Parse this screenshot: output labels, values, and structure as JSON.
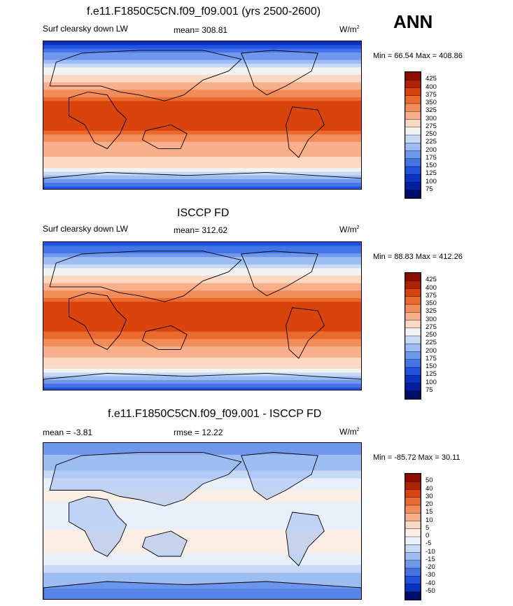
{
  "season": "ANN",
  "panels": [
    {
      "title": "f.e11.F1850C5CN.f09_f09.001 (yrs 2500-2600)",
      "left_label": "Surf clearsky down LW",
      "center_label": "mean= 308.81",
      "units": "W/m",
      "units_sup": "2",
      "minmax": "Min =  66.54 Max = 408.86",
      "colorbar_labels": [
        "425",
        "400",
        "375",
        "350",
        "325",
        "300",
        "275",
        "250",
        "225",
        "200",
        "175",
        "150",
        "125",
        "100",
        "75"
      ],
      "kind": "model"
    },
    {
      "title": "ISCCP FD",
      "left_label": "Surf clearsky down LW",
      "center_label": "mean= 312.62",
      "units": "W/m",
      "units_sup": "2",
      "minmax": "Min =  88.83 Max = 412.26",
      "colorbar_labels": [
        "425",
        "400",
        "375",
        "350",
        "325",
        "300",
        "275",
        "250",
        "225",
        "200",
        "175",
        "150",
        "125",
        "100",
        "75"
      ],
      "kind": "obs"
    },
    {
      "title": "f.e11.F1850C5CN.f09_f09.001 - ISCCP FD",
      "left_label": "mean =  -3.81",
      "center_label": "rmse =  12.22",
      "units": "W/m",
      "units_sup": "2",
      "minmax": "Min = -85.72 Max =  30.11",
      "colorbar_labels": [
        "50",
        "40",
        "30",
        "20",
        "15",
        "10",
        "5",
        "0",
        "-5",
        "-10",
        "-15",
        "-20",
        "-30",
        "-40",
        "-50"
      ],
      "kind": "diff"
    }
  ],
  "colors": {
    "abs_scale": [
      "#8e0b00",
      "#b02300",
      "#d8440c",
      "#e96a2c",
      "#f28c58",
      "#f7b08b",
      "#fbd8c2",
      "#f2f2f2",
      "#c7d9f5",
      "#9cbcf2",
      "#6f97ec",
      "#4474e8",
      "#1f52e0",
      "#0a33c4",
      "#031fa0",
      "#000c6a"
    ],
    "diff_scale": [
      "#8e0b00",
      "#b02300",
      "#d8440c",
      "#e96a2c",
      "#f28c58",
      "#f7b08b",
      "#fbd8c2",
      "#fbeee4",
      "#e9f0fa",
      "#c7d9f5",
      "#9cbcf2",
      "#6f97ec",
      "#4474e8",
      "#1f52e0",
      "#0a33c4",
      "#000c6a"
    ],
    "coast": "#000000"
  },
  "chart_data": [
    {
      "type": "heatmap",
      "title": "f.e11.F1850C5CN.f09_f09.001 (yrs 2500-2600)",
      "variable": "Surf clearsky down LW",
      "units": "W/m2",
      "mean": 308.81,
      "min": 66.54,
      "max": 408.86,
      "levels": [
        75,
        100,
        125,
        150,
        175,
        200,
        225,
        250,
        275,
        300,
        325,
        350,
        375,
        400,
        425
      ],
      "zonal_profile": {
        "lat": [
          90,
          60,
          30,
          15,
          0,
          -15,
          -30,
          -60,
          -90
        ],
        "value": [
          110,
          240,
          330,
          380,
          395,
          385,
          330,
          280,
          120
        ]
      }
    },
    {
      "type": "heatmap",
      "title": "ISCCP FD",
      "variable": "Surf clearsky down LW",
      "units": "W/m2",
      "mean": 312.62,
      "min": 88.83,
      "max": 412.26,
      "levels": [
        75,
        100,
        125,
        150,
        175,
        200,
        225,
        250,
        275,
        300,
        325,
        350,
        375,
        400,
        425
      ],
      "zonal_profile": {
        "lat": [
          90,
          60,
          30,
          15,
          0,
          -15,
          -30,
          -60,
          -90
        ],
        "value": [
          130,
          240,
          330,
          385,
          400,
          390,
          335,
          285,
          125
        ]
      }
    },
    {
      "type": "heatmap",
      "title": "f.e11.F1850C5CN.f09_f09.001 - ISCCP FD",
      "units": "W/m2",
      "mean": -3.81,
      "rmse": 12.22,
      "min": -85.72,
      "max": 30.11,
      "levels": [
        -50,
        -40,
        -30,
        -20,
        -15,
        -10,
        -5,
        0,
        5,
        10,
        15,
        20,
        30,
        40,
        50
      ],
      "zonal_profile": {
        "lat": [
          90,
          60,
          30,
          15,
          0,
          -15,
          -30,
          -60,
          -90
        ],
        "value": [
          -20,
          -10,
          3,
          -3,
          -5,
          4,
          3,
          -10,
          -20
        ]
      }
    }
  ]
}
